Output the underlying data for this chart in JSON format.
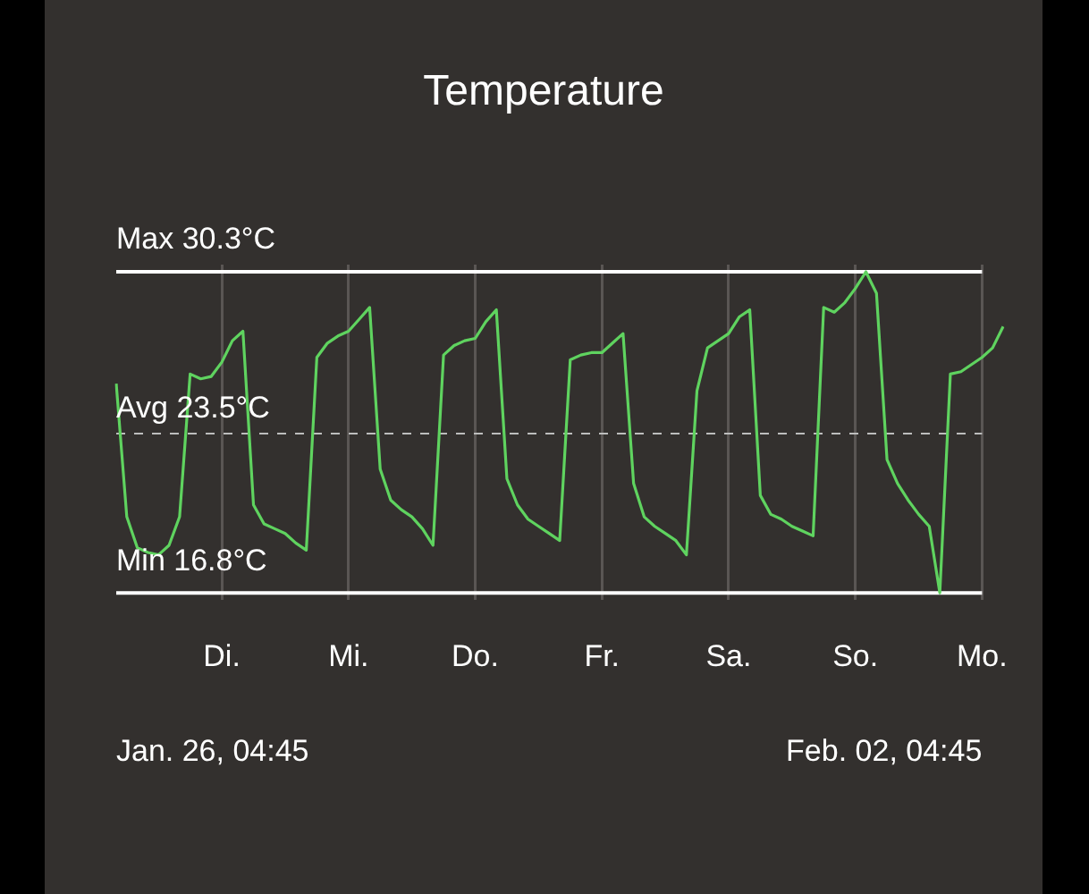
{
  "chart_data": {
    "type": "line",
    "title": "Temperature",
    "categories": [
      null,
      null,
      null,
      null,
      null,
      null,
      null,
      null,
      null,
      null,
      "Di.",
      null,
      null,
      null,
      null,
      null,
      null,
      null,
      null,
      null,
      null,
      null,
      "Mi.",
      null,
      null,
      null,
      null,
      null,
      null,
      null,
      null,
      null,
      null,
      null,
      "Do.",
      null,
      null,
      null,
      null,
      null,
      null,
      null,
      null,
      null,
      null,
      null,
      "Fr.",
      null,
      null,
      null,
      null,
      null,
      null,
      null,
      null,
      null,
      null,
      null,
      "Sa.",
      null,
      null,
      null,
      null,
      null,
      null,
      null,
      null,
      null,
      null,
      null,
      "So.",
      null,
      null,
      null,
      null,
      null,
      null,
      null,
      null,
      null,
      null,
      null,
      "Mo.",
      null,
      null
    ],
    "series": [
      {
        "color": "#5fd35f",
        "values": [
          25.6,
          20.0,
          18.7,
          18.5,
          18.4,
          18.8,
          20.0,
          26.0,
          25.8,
          25.9,
          26.5,
          27.4,
          27.8,
          20.5,
          19.7,
          19.5,
          19.3,
          18.9,
          18.6,
          26.7,
          27.3,
          27.6,
          27.8,
          28.3,
          28.8,
          22.0,
          20.7,
          20.3,
          20.0,
          19.5,
          18.8,
          26.8,
          27.2,
          27.4,
          27.5,
          28.2,
          28.7,
          21.6,
          20.5,
          19.9,
          19.6,
          19.3,
          19.0,
          26.6,
          26.8,
          26.9,
          26.9,
          27.3,
          27.7,
          21.4,
          20.0,
          19.6,
          19.3,
          19.0,
          18.4,
          25.3,
          27.1,
          27.4,
          27.7,
          28.4,
          28.7,
          20.9,
          20.1,
          19.9,
          19.6,
          19.4,
          19.2,
          28.8,
          28.6,
          29.0,
          29.6,
          30.3,
          29.4,
          22.4,
          21.4,
          20.7,
          20.1,
          19.6,
          16.8,
          26.0,
          26.1,
          26.4,
          26.7,
          27.1,
          28.0
        ]
      }
    ],
    "ylim": [
      16.5,
      30.6
    ],
    "tick_labels": "x",
    "grid": "x",
    "legend": false,
    "marker": "none",
    "line_style": "solid",
    "ref_lines": [
      {
        "axis": "y",
        "value": 30.3,
        "label": "Max 30.3°C",
        "color": "#ffffff",
        "line_style": "solid"
      },
      {
        "axis": "y",
        "value": 23.5,
        "label": "Avg 23.5°C",
        "color": "#bdbdbd",
        "line_style": "dashed"
      },
      {
        "axis": "y",
        "value": 16.8,
        "label": "Min 16.8°C",
        "color": "#ffffff",
        "line_style": "solid"
      }
    ],
    "annotations": [
      "Jan. 26, 04:45",
      "Feb. 02, 04:45"
    ]
  }
}
